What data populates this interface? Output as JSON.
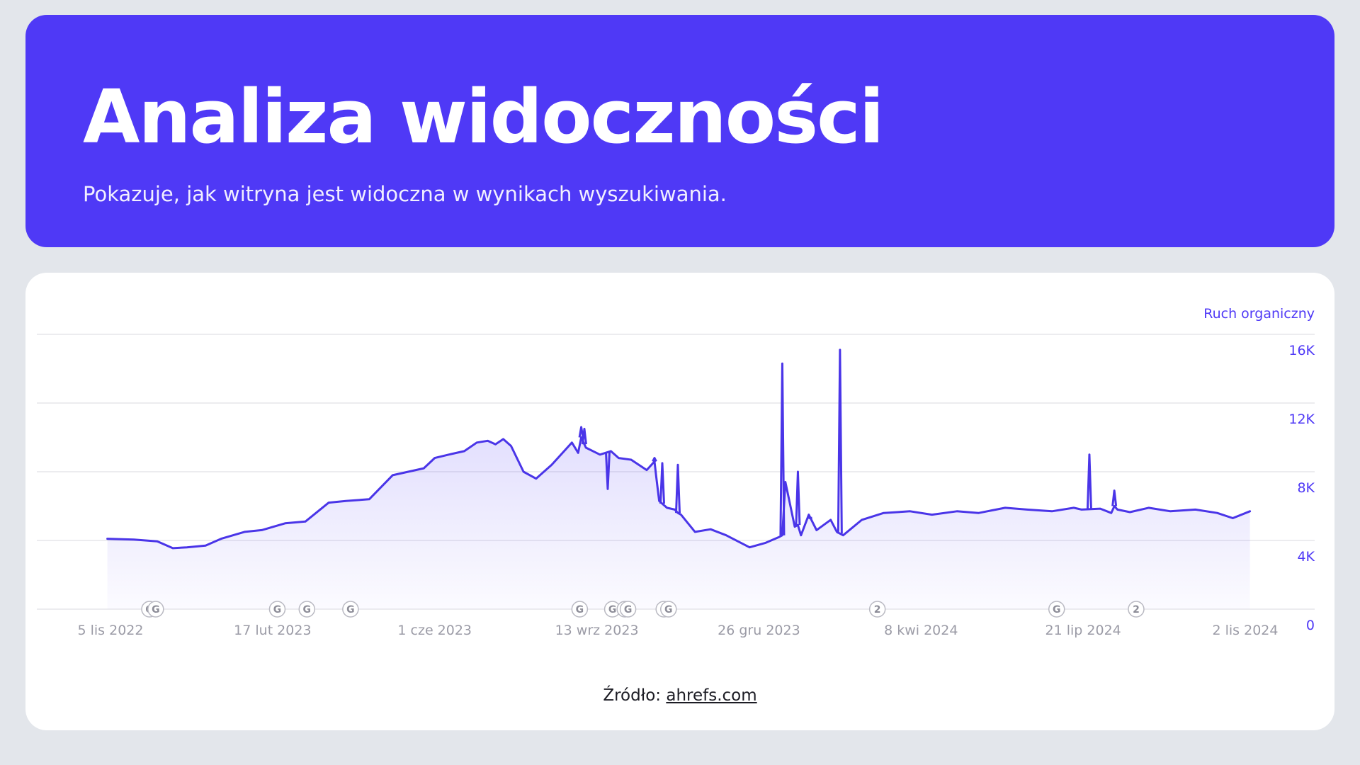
{
  "header": {
    "title": "Analiza widoczności",
    "subtitle": "Pokazuje, jak witryna jest widoczna w wynikach wyszukiwania."
  },
  "source": {
    "prefix": "Źródło:",
    "link_text": "ahrefs.com"
  },
  "colors": {
    "accent": "#4f39f6",
    "series_line": "#4a35e8",
    "grid": "#e6e6ea",
    "tick_text": "#9b9ba6",
    "page_bg": "#e3e6eb"
  },
  "chart_data": {
    "type": "area",
    "y_axis_title": "Ruch organiczny",
    "y_axis_position": "right",
    "ylim": [
      0,
      16000
    ],
    "yticks": [
      0,
      4000,
      8000,
      12000,
      16000
    ],
    "ytick_labels": [
      "0",
      "4K",
      "8K",
      "12K",
      "16K"
    ],
    "xticks": [
      "2022-11-05",
      "2023-02-17",
      "2023-06-01",
      "2023-09-13",
      "2023-12-26",
      "2024-04-08",
      "2024-07-21",
      "2024-11-02"
    ],
    "xtick_labels": [
      "5 lis 2022",
      "17 lut 2023",
      "1 cze 2023",
      "13 wrz 2023",
      "26 gru 2023",
      "8 kwi 2024",
      "21 lip 2024",
      "2 lis 2024"
    ],
    "grid": true,
    "legend": "none",
    "series": [
      {
        "x": [
          "2022-11-03",
          "2022-11-20",
          "2022-12-05",
          "2022-12-15",
          "2022-12-24",
          "2023-01-05",
          "2023-01-15",
          "2023-01-30",
          "2023-02-10",
          "2023-02-25",
          "2023-03-10",
          "2023-03-25",
          "2023-04-05",
          "2023-04-20",
          "2023-05-05",
          "2023-05-15",
          "2023-05-25",
          "2023-06-01",
          "2023-06-10",
          "2023-06-20",
          "2023-06-28",
          "2023-07-05",
          "2023-07-10",
          "2023-07-15",
          "2023-07-20",
          "2023-07-28",
          "2023-08-05",
          "2023-08-15",
          "2023-08-28",
          "2023-09-01",
          "2023-09-03",
          "2023-09-06",
          "2023-09-15",
          "2023-09-22",
          "2023-09-27",
          "2023-10-05",
          "2023-10-15",
          "2023-10-20",
          "2023-10-21",
          "2023-10-23",
          "2023-10-28",
          "2023-11-02",
          "2023-11-04",
          "2023-11-06",
          "2023-11-15",
          "2023-11-25",
          "2023-12-05",
          "2023-12-20",
          "2023-12-30",
          "2024-01-08",
          "2024-01-10",
          "2024-01-12",
          "2024-01-18",
          "2024-01-20",
          "2024-01-22",
          "2024-01-27",
          "2024-02-01",
          "2024-02-10",
          "2024-02-14",
          "2024-02-16",
          "2024-02-18",
          "2024-03-01",
          "2024-03-15",
          "2024-04-01",
          "2024-04-15",
          "2024-05-01",
          "2024-05-15",
          "2024-06-01",
          "2024-06-15",
          "2024-07-01",
          "2024-07-15",
          "2024-07-20",
          "2024-08-01",
          "2024-08-08",
          "2024-08-10",
          "2024-08-12",
          "2024-08-20",
          "2024-09-01",
          "2024-09-15",
          "2024-10-01",
          "2024-10-15",
          "2024-10-25",
          "2024-11-05"
        ],
        "y": [
          4100,
          4050,
          3950,
          3550,
          3600,
          3700,
          4100,
          4500,
          4600,
          5000,
          5100,
          6200,
          6300,
          6400,
          7800,
          8000,
          8200,
          8800,
          9000,
          9200,
          9700,
          9800,
          9600,
          9900,
          9500,
          8000,
          7600,
          8400,
          9700,
          9100,
          10000,
          9400,
          9000,
          9200,
          8800,
          8700,
          8100,
          8600,
          7800,
          6300,
          5900,
          5800,
          5600,
          5500,
          4500,
          4650,
          4300,
          3600,
          3850,
          4200,
          4300,
          7400,
          4800,
          4900,
          4300,
          5500,
          4600,
          5200,
          4500,
          4400,
          4300,
          5200,
          5600,
          5700,
          5500,
          5700,
          5600,
          5900,
          5800,
          5700,
          5900,
          5800,
          5850,
          5600,
          6000,
          5800,
          5650,
          5900,
          5700,
          5800,
          5600,
          5300,
          5700
        ]
      }
    ],
    "spikes": [
      {
        "x": "2023-09-03",
        "y": 10600
      },
      {
        "x": "2023-09-05",
        "y": 10500
      },
      {
        "x": "2023-09-20",
        "y": 7000
      },
      {
        "x": "2023-10-20",
        "y": 8800
      },
      {
        "x": "2023-10-25",
        "y": 8500
      },
      {
        "x": "2023-11-04",
        "y": 8400
      },
      {
        "x": "2024-01-10",
        "y": 14300
      },
      {
        "x": "2024-01-20",
        "y": 8000
      },
      {
        "x": "2024-01-28",
        "y": 5300
      },
      {
        "x": "2024-02-16",
        "y": 15100
      },
      {
        "x": "2024-07-25",
        "y": 9000
      },
      {
        "x": "2024-08-10",
        "y": 6900
      }
    ],
    "event_markers": [
      {
        "x": "2022-11-30",
        "label": "G"
      },
      {
        "x": "2022-12-04",
        "label": "G"
      },
      {
        "x": "2023-02-20",
        "label": "G"
      },
      {
        "x": "2023-03-11",
        "label": "G"
      },
      {
        "x": "2023-04-08",
        "label": "G"
      },
      {
        "x": "2023-09-02",
        "label": "G"
      },
      {
        "x": "2023-09-23",
        "label": "G"
      },
      {
        "x": "2023-10-01",
        "label": "G"
      },
      {
        "x": "2023-10-03",
        "label": "G"
      },
      {
        "x": "2023-10-26",
        "label": "G"
      },
      {
        "x": "2023-10-29",
        "label": "G"
      },
      {
        "x": "2024-03-11",
        "label": "2"
      },
      {
        "x": "2024-07-04",
        "label": "G"
      },
      {
        "x": "2024-08-24",
        "label": "2"
      }
    ]
  }
}
